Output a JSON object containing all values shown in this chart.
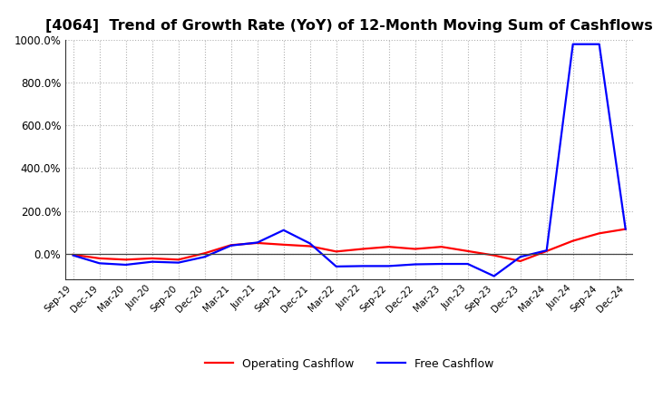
{
  "title": "[4064]  Trend of Growth Rate (YoY) of 12-Month Moving Sum of Cashflows",
  "ylim": [
    -120,
    1000
  ],
  "yticks": [
    0,
    200,
    400,
    600,
    800,
    1000
  ],
  "x_labels": [
    "Sep-19",
    "Dec-19",
    "Mar-20",
    "Jun-20",
    "Sep-20",
    "Dec-20",
    "Mar-21",
    "Jun-21",
    "Sep-21",
    "Dec-21",
    "Mar-22",
    "Jun-22",
    "Sep-22",
    "Dec-22",
    "Mar-23",
    "Jun-23",
    "Sep-23",
    "Dec-23",
    "Mar-24",
    "Jun-24",
    "Sep-24",
    "Dec-24"
  ],
  "operating_cashflow": [
    -5,
    -22,
    -28,
    -22,
    -28,
    2,
    40,
    50,
    42,
    35,
    10,
    22,
    32,
    22,
    32,
    12,
    -8,
    -35,
    12,
    60,
    95,
    115
  ],
  "free_cashflow": [
    -8,
    -45,
    -52,
    -38,
    -42,
    -15,
    38,
    52,
    110,
    48,
    -60,
    -58,
    -58,
    -50,
    -48,
    -48,
    -105,
    -15,
    15,
    980,
    980,
    115
  ],
  "op_color": "#ff0000",
  "fc_color": "#0000ff",
  "background_color": "#ffffff",
  "grid_color": "#b0b0b0",
  "zero_line_color": "#444444",
  "title_fontsize": 11.5,
  "legend_labels": [
    "Operating Cashflow",
    "Free Cashflow"
  ]
}
